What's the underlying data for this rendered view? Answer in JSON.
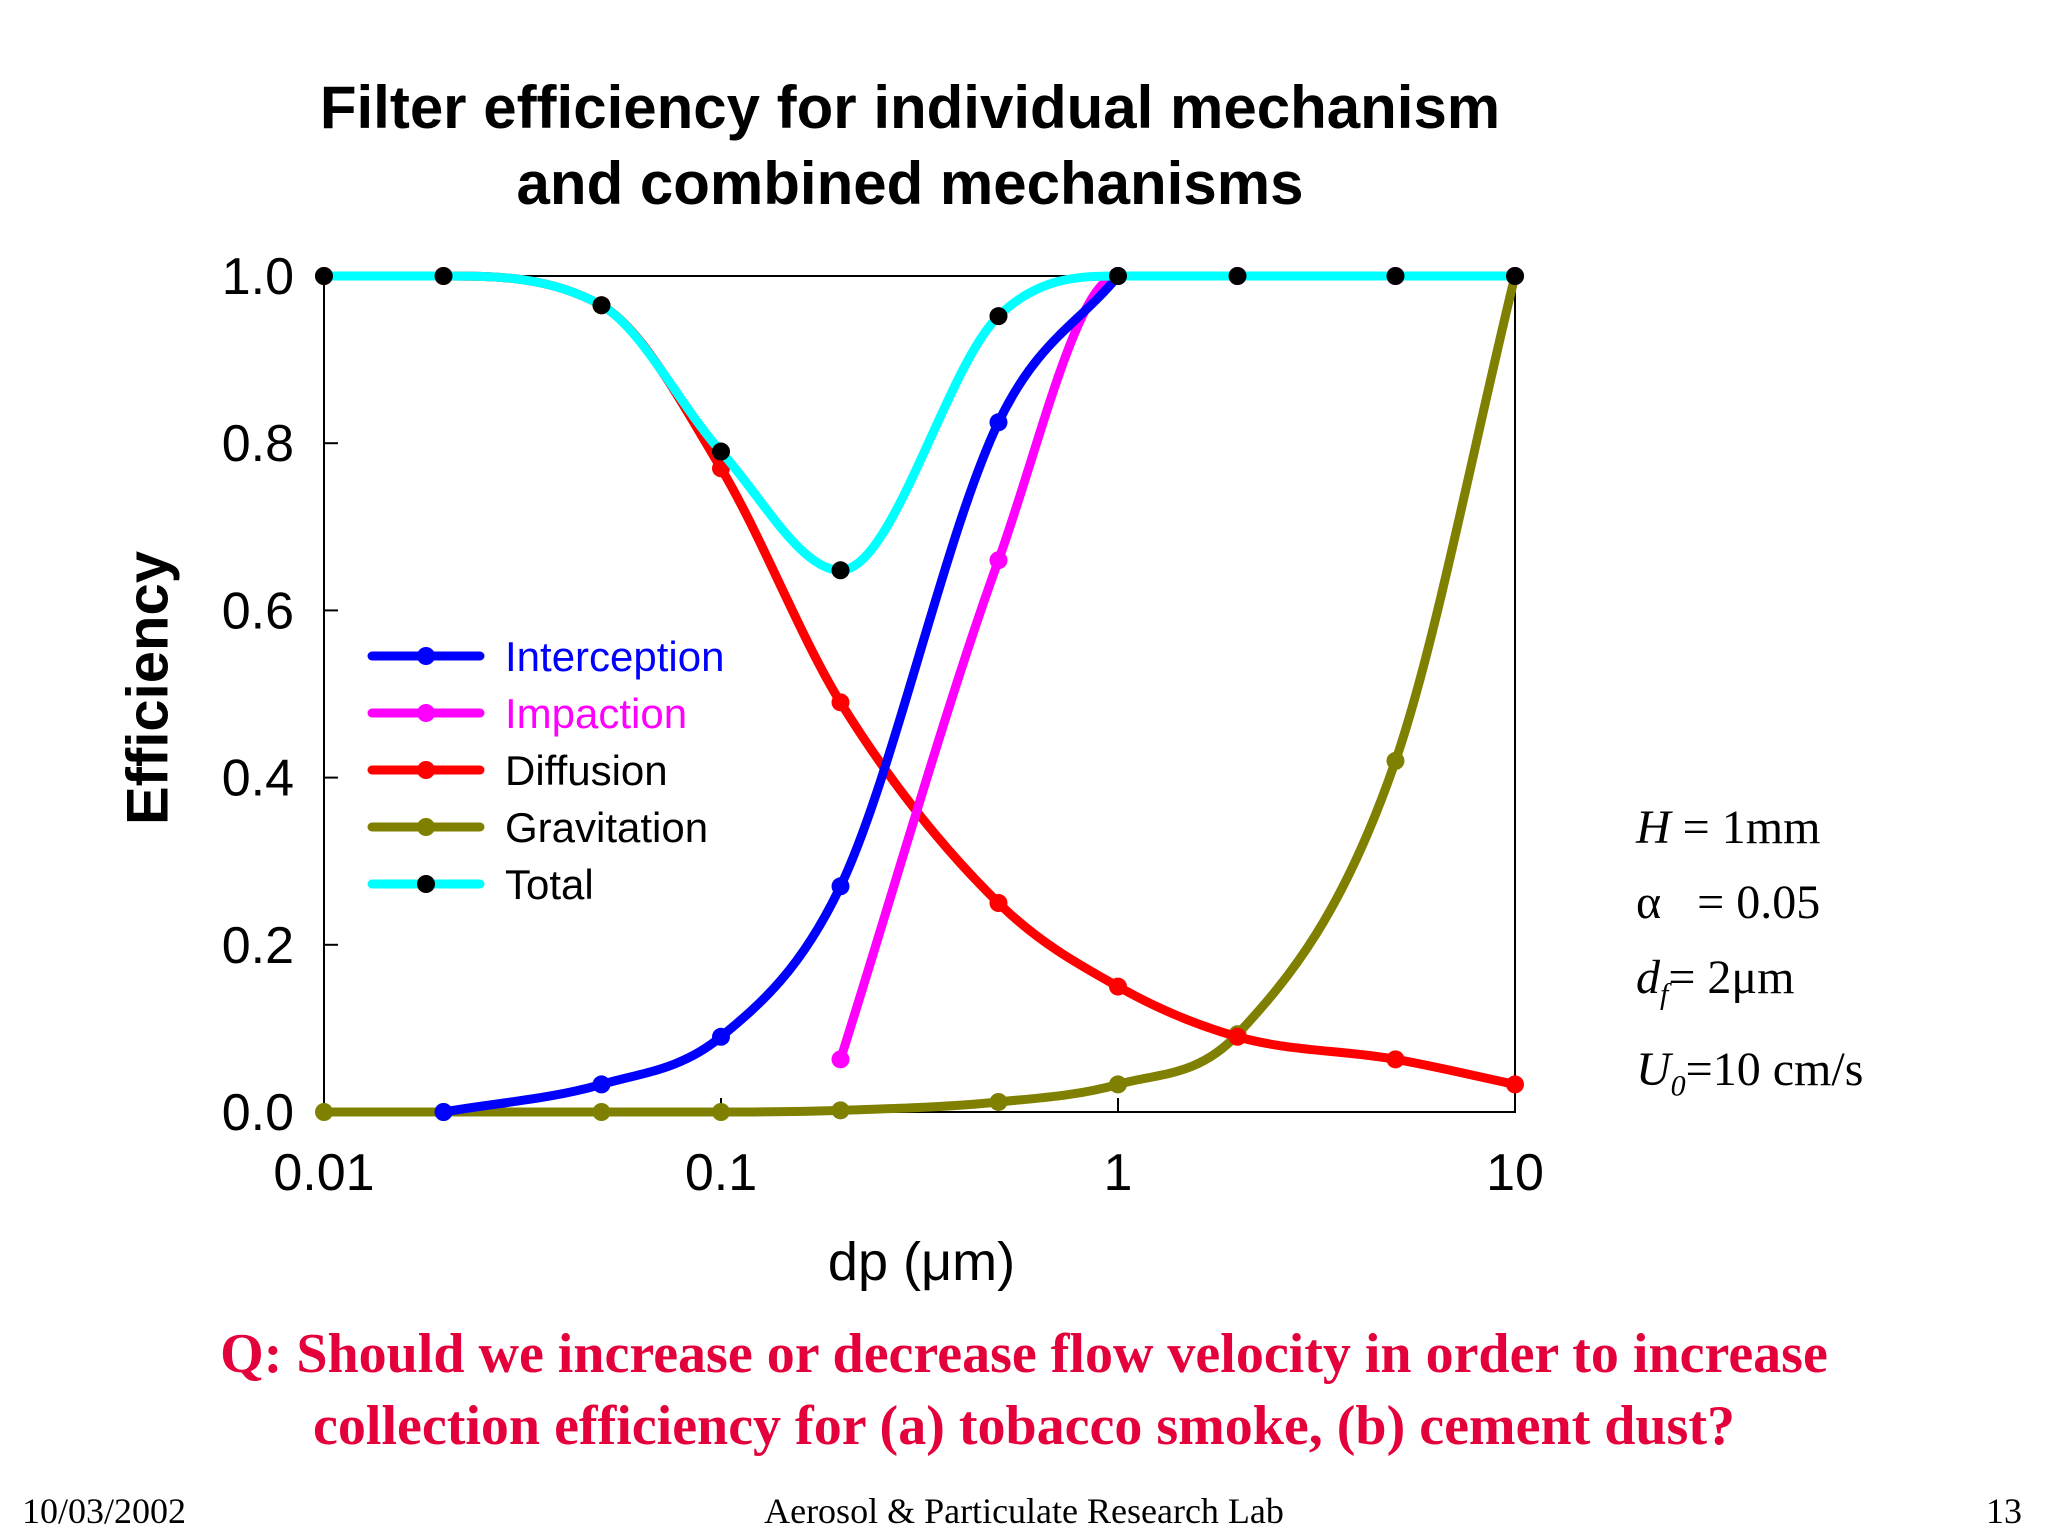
{
  "slide": {
    "title_line1": "Filter efficiency for individual mechanism",
    "title_line2": "and combined mechanisms",
    "params": {
      "H_sym": "H",
      "H_val": " = 1mm",
      "alpha_sym": "α",
      "alpha_val": "= 0.05",
      "df_sym": "d",
      "df_sub": "f",
      "df_val": "= 2μm",
      "U_sym": "U",
      "U_sub": "0",
      "U_val": "=10 cm/s"
    },
    "question_line1": "Q: Should we increase or decrease flow velocity in order to increase",
    "question_line2": "collection efficiency for (a) tobacco smoke, (b) cement dust?",
    "footer_date": "10/03/2002",
    "footer_lab": "Aerosol & Particulate Research Lab",
    "footer_page": "13"
  },
  "chart_data": {
    "type": "line",
    "xscale": "log",
    "xlim": [
      0.01,
      10
    ],
    "ylim": [
      0,
      1
    ],
    "xlabel": "dp (μm)",
    "ylabel": "Efficiency",
    "xticks": [
      "0.01",
      "0.1",
      "1",
      "10"
    ],
    "yticks": [
      "0.0",
      "0.2",
      "0.4",
      "0.6",
      "0.8",
      "1.0"
    ],
    "legend_position": "middle-left",
    "series": [
      {
        "name": "Interception",
        "color": "#0000ff",
        "x": [
          0.02,
          0.05,
          0.1,
          0.2,
          0.5,
          1
        ],
        "y": [
          0.0,
          0.033,
          0.09,
          0.27,
          0.825,
          1.0
        ]
      },
      {
        "name": "Impaction",
        "color": "#ff00ff",
        "x": [
          0.2,
          0.5,
          1,
          2,
          5,
          10
        ],
        "y": [
          0.063,
          0.66,
          1.0,
          1.0,
          1.0,
          1.0
        ]
      },
      {
        "name": "Diffusion",
        "color": "#ff0000",
        "x": [
          0.01,
          0.02,
          0.05,
          0.1,
          0.2,
          0.5,
          1,
          2,
          5,
          10
        ],
        "y": [
          1.0,
          1.0,
          0.965,
          0.77,
          0.49,
          0.25,
          0.15,
          0.09,
          0.063,
          0.033
        ]
      },
      {
        "name": "Gravitation",
        "color": "#808000",
        "x": [
          0.01,
          0.02,
          0.05,
          0.1,
          0.2,
          0.5,
          1,
          2,
          5,
          10
        ],
        "y": [
          0.0,
          0.0,
          0.0,
          0.0,
          0.002,
          0.012,
          0.033,
          0.093,
          0.42,
          1.0
        ]
      },
      {
        "name": "Total",
        "color": "#00ffff",
        "marker_color": "#000000",
        "x": [
          0.01,
          0.02,
          0.05,
          0.1,
          0.2,
          0.5,
          1,
          2,
          5,
          10
        ],
        "y": [
          1.0,
          1.0,
          0.965,
          0.79,
          0.648,
          0.952,
          1.0,
          1.0,
          1.0,
          1.0
        ]
      }
    ]
  }
}
